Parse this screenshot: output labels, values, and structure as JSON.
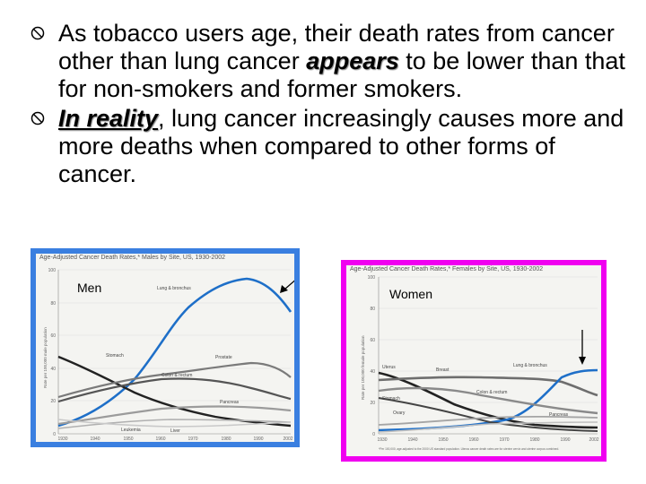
{
  "bullets": [
    {
      "icon": "no-symbol-icon",
      "text_before": "As tobacco users age, their death rates from cancer other than lung cancer ",
      "emphasis": "appears",
      "text_after": " to be lower than that for non-smokers and former smokers."
    },
    {
      "icon": "no-symbol-icon",
      "emphasis": "In reality",
      "text_after": ", lung cancer increasingly causes more and more deaths when compared to other forms of cancer."
    }
  ],
  "men_chart": {
    "label": "Men",
    "title": "Age-Adjusted Cancer Death Rates,* Males by Site, US, 1930-2002",
    "ylabel": "Rate per 100,000 male population",
    "accent_color": "#3a7fe0",
    "arrow": "diagonal-arrow-icon",
    "series_labels": [
      "Lung & bronchus",
      "Stomach",
      "Prostate",
      "Colon & rectum",
      "Pancreas",
      "Leukemia",
      "Liver"
    ],
    "x_ticks": [
      "1930",
      "1940",
      "1950",
      "1960",
      "1970",
      "1980",
      "1990",
      "2002"
    ],
    "y_ticks": [
      "100",
      "80",
      "60",
      "40",
      "20",
      "0"
    ]
  },
  "women_chart": {
    "label": "Women",
    "title": "Age-Adjusted Cancer Death Rates,* Females by Site, US, 1930-2002",
    "ylabel": "Rate per 100,000 female population",
    "accent_color": "#f000f0",
    "arrow": "down-arrow-icon",
    "series_labels": [
      "Uterus",
      "Breast",
      "Lung & bronchus",
      "Colon & rectum",
      "Stomach",
      "Ovary",
      "Pancreas"
    ],
    "x_ticks": [
      "1930",
      "1940",
      "1950",
      "1960",
      "1970",
      "1980",
      "1990",
      "2002"
    ],
    "y_ticks": [
      "100",
      "80",
      "60",
      "40",
      "20",
      "0"
    ],
    "footnote": "*Per 100,000, age-adjusted to the 2000 US standard population. Uterus cancer death rates are for uterine cervix and uterine corpus combined."
  }
}
